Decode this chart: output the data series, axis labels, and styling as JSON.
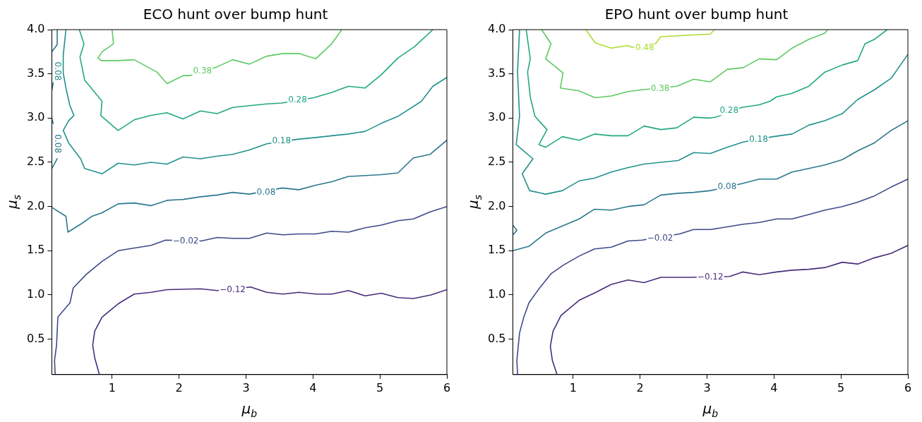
{
  "chart_data": [
    {
      "type": "line",
      "title": "ECO hunt over bump hunt",
      "xlabel": "μ$_{b}$",
      "ylabel": "μ$_{s}$",
      "xlim": [
        0.1,
        6
      ],
      "ylim": [
        0.1,
        4
      ],
      "xticks": [
        1,
        2,
        3,
        4,
        5,
        6
      ],
      "yticks": [
        {
          "value": 0.5,
          "label": "0.5"
        },
        {
          "value": 1,
          "label": "1.0"
        },
        {
          "value": 1.5,
          "label": "1.5"
        },
        {
          "value": 2,
          "label": "2.0"
        },
        {
          "value": 2.5,
          "label": "2.5"
        },
        {
          "value": 3,
          "label": "3.0"
        },
        {
          "value": 3.5,
          "label": "3.5"
        },
        {
          "value": 4,
          "label": "4.0"
        }
      ],
      "grid": false,
      "legend": false,
      "marker": "none",
      "line_style": "solid",
      "series": [
        {
          "color": "#472d7b",
          "x": [
            0.81,
            0.74,
            0.71,
            0.74,
            0.85,
            1.09,
            1.33,
            1.58,
            1.82,
            2.32,
            2.57,
            3.07,
            3.31,
            3.55,
            3.79,
            4.05,
            4.28,
            4.53,
            4.78,
            5.02,
            5.27,
            5.5,
            5.76,
            6.0
          ],
          "values": [
            0.1,
            0.29,
            0.43,
            0.59,
            0.75,
            0.9,
            1.01,
            1.03,
            1.06,
            1.07,
            1.05,
            1.09,
            1.03,
            1.01,
            1.03,
            1.01,
            1.01,
            1.05,
            0.99,
            1.02,
            0.97,
            0.96,
            1.0,
            1.06
          ]
        },
        {
          "color": "#3e4989",
          "x": [
            0.15,
            0.14,
            0.17,
            0.19,
            0.37,
            0.42,
            0.61,
            0.85,
            1.09,
            1.33,
            1.58,
            1.8,
            2.33,
            2.57,
            2.8,
            3.05,
            3.31,
            3.55,
            3.79,
            4.04,
            4.28,
            4.53,
            4.78,
            5.02,
            5.27,
            5.5,
            5.75,
            6.0
          ],
          "values": [
            0.1,
            0.26,
            0.43,
            0.75,
            0.91,
            1.08,
            1.23,
            1.38,
            1.5,
            1.53,
            1.56,
            1.62,
            1.61,
            1.65,
            1.64,
            1.64,
            1.7,
            1.68,
            1.69,
            1.69,
            1.72,
            1.71,
            1.76,
            1.79,
            1.84,
            1.86,
            1.94,
            2.0
          ]
        },
        {
          "color": "#2a788e",
          "x": [
            0.1,
            0.31,
            0.34,
            0.55,
            0.7,
            0.85,
            1.09,
            1.33,
            1.58,
            1.82,
            2.06,
            2.32,
            2.57,
            2.8,
            3.05,
            3.54,
            3.79,
            4.04,
            4.28,
            4.53,
            4.78,
            5.02,
            5.27,
            5.5,
            5.75,
            6.0
          ],
          "values": [
            1.99,
            1.89,
            1.71,
            1.81,
            1.89,
            1.93,
            2.03,
            2.04,
            2.01,
            2.07,
            2.08,
            2.11,
            2.13,
            2.16,
            2.14,
            2.21,
            2.19,
            2.24,
            2.28,
            2.34,
            2.35,
            2.36,
            2.38,
            2.55,
            2.59,
            2.75
          ]
        },
        {
          "color": "#2a788e",
          "x": [
            0.1,
            0.18
          ],
          "values": [
            2.43,
            2.54
          ]
        },
        {
          "color": "#2a788e",
          "x": [
            0.12,
            0.1
          ],
          "values": [
            2.94,
            3.0
          ]
        },
        {
          "color": "#2a788e",
          "x": [
            0.1,
            0.12
          ],
          "values": [
            3.31,
            3.4
          ]
        },
        {
          "color": "#2a788e",
          "x": [
            0.1,
            0.18,
            0.18
          ],
          "values": [
            3.75,
            3.83,
            4.0
          ]
        },
        {
          "color": "#21918c",
          "x": [
            0.31,
            0.27,
            0.27,
            0.31,
            0.37,
            0.43,
            0.35,
            0.27,
            0.35,
            0.41,
            0.53,
            0.59,
            0.85,
            1.09,
            1.33,
            1.58,
            1.82,
            2.06,
            2.32,
            2.57,
            2.8,
            3.05,
            3.31,
            3.77,
            4.04,
            4.28,
            4.53,
            4.78,
            5.02,
            5.27,
            5.62,
            5.79,
            6.0
          ],
          "values": [
            4.0,
            3.71,
            3.51,
            3.34,
            3.14,
            3.03,
            2.97,
            2.86,
            2.72,
            2.66,
            2.54,
            2.43,
            2.37,
            2.49,
            2.47,
            2.5,
            2.48,
            2.56,
            2.54,
            2.57,
            2.59,
            2.64,
            2.71,
            2.76,
            2.78,
            2.8,
            2.82,
            2.85,
            2.94,
            3.02,
            3.19,
            3.36,
            3.46
          ]
        },
        {
          "color": "#22a884",
          "x": [
            0.51,
            0.58,
            0.52,
            0.59,
            0.85,
            0.83,
            1.09,
            1.33,
            1.58,
            1.82,
            2.06,
            2.32,
            2.57,
            2.8,
            3.05,
            3.31,
            3.54,
            4.01,
            4.28,
            4.53,
            4.78,
            5.02,
            5.27,
            5.52,
            5.79
          ],
          "values": [
            4.0,
            3.84,
            3.69,
            3.43,
            3.19,
            3.03,
            2.86,
            2.98,
            3.03,
            3.06,
            2.99,
            3.08,
            3.05,
            3.12,
            3.14,
            3.16,
            3.17,
            3.23,
            3.29,
            3.36,
            3.34,
            3.49,
            3.68,
            3.81,
            4.0
          ]
        },
        {
          "color": "#5ec962",
          "x": [
            1.0,
            1.02,
            0.85,
            0.79,
            0.84,
            1.09,
            1.33,
            1.67,
            1.82,
            2.06,
            2.16,
            2.57,
            2.8,
            3.05,
            3.31,
            3.55,
            3.79,
            4.04,
            4.28,
            4.43
          ],
          "values": [
            4.0,
            3.84,
            3.75,
            3.68,
            3.65,
            3.65,
            3.66,
            3.52,
            3.39,
            3.48,
            3.48,
            3.58,
            3.66,
            3.61,
            3.7,
            3.73,
            3.73,
            3.67,
            3.84,
            4.0
          ]
        }
      ],
      "annotations": [
        {
          "text": "−0.12",
          "x": 2.8,
          "y": 1.06
        },
        {
          "text": "−0.02",
          "x": 2.1,
          "y": 1.61
        },
        {
          "text": "0.08",
          "x": 3.3,
          "y": 2.16
        },
        {
          "text": "0.18",
          "x": 3.53,
          "y": 2.74
        },
        {
          "text": "0.28",
          "x": 3.77,
          "y": 3.2
        },
        {
          "text": "0.38",
          "x": 2.35,
          "y": 3.53
        },
        {
          "text": "0.08",
          "x": 0.18,
          "y": 2.71
        },
        {
          "text": "0.08",
          "x": 0.18,
          "y": 3.53
        }
      ]
    },
    {
      "type": "line",
      "title": "EPO hunt over bump hunt",
      "xlabel": "μ$_{b}$",
      "ylabel": "μ$_{s}$",
      "xlim": [
        0.1,
        6
      ],
      "ylim": [
        0.1,
        4
      ],
      "xticks": [
        1,
        2,
        3,
        4,
        5,
        6
      ],
      "yticks": [
        {
          "value": 0.5,
          "label": "0.5"
        },
        {
          "value": 1,
          "label": "1.0"
        },
        {
          "value": 1.5,
          "label": "1.5"
        },
        {
          "value": 2,
          "label": "2.0"
        },
        {
          "value": 2.5,
          "label": "2.5"
        },
        {
          "value": 3,
          "label": "3.0"
        },
        {
          "value": 3.5,
          "label": "3.5"
        },
        {
          "value": 4,
          "label": "4.0"
        }
      ],
      "grid": false,
      "legend": false,
      "marker": "none",
      "line_style": "solid",
      "series": [
        {
          "color": "#472d7b",
          "x": [
            0.76,
            0.69,
            0.66,
            0.7,
            0.82,
            1.09,
            1.34,
            1.57,
            1.82,
            2.06,
            2.31,
            2.57,
            2.76,
            3.34,
            3.53,
            3.78,
            4.04,
            4.27,
            4.52,
            4.76,
            5.02,
            5.25,
            5.5,
            5.75,
            6.0
          ],
          "values": [
            0.1,
            0.26,
            0.42,
            0.59,
            0.77,
            0.94,
            1.03,
            1.12,
            1.17,
            1.14,
            1.2,
            1.2,
            1.2,
            1.21,
            1.26,
            1.23,
            1.26,
            1.28,
            1.29,
            1.31,
            1.37,
            1.35,
            1.42,
            1.47,
            1.56
          ]
        },
        {
          "color": "#3e4989",
          "x": [
            0.17,
            0.16,
            0.2,
            0.26,
            0.34,
            0.49,
            0.67,
            0.86,
            1.09,
            1.32,
            1.57,
            1.82,
            2.03,
            2.59,
            2.8,
            3.05,
            3.3,
            3.54,
            3.78,
            4.04,
            4.27,
            4.52,
            4.76,
            5.02,
            5.25,
            5.5,
            5.75,
            6.0
          ],
          "values": [
            0.1,
            0.26,
            0.57,
            0.74,
            0.91,
            1.07,
            1.24,
            1.34,
            1.44,
            1.52,
            1.54,
            1.61,
            1.62,
            1.69,
            1.74,
            1.74,
            1.77,
            1.8,
            1.82,
            1.86,
            1.86,
            1.91,
            1.96,
            2.0,
            2.05,
            2.12,
            2.22,
            2.31
          ]
        },
        {
          "color": "#2a788e",
          "x": [
            0.1,
            0.34,
            0.59,
            0.84,
            1.09,
            1.32,
            1.57,
            1.82,
            2.06,
            2.31,
            2.57,
            2.8,
            3.05,
            3.53,
            3.78,
            4.04,
            4.27,
            4.52,
            4.76,
            5.02,
            5.25,
            5.5,
            5.75,
            6.0
          ],
          "values": [
            1.5,
            1.55,
            1.7,
            1.78,
            1.86,
            1.97,
            1.96,
            2.0,
            2.02,
            2.13,
            2.15,
            2.16,
            2.18,
            2.26,
            2.31,
            2.31,
            2.39,
            2.43,
            2.47,
            2.53,
            2.63,
            2.72,
            2.86,
            2.97
          ]
        },
        {
          "color": "#2a788e",
          "x": [
            0.1,
            0.16,
            0.1
          ],
          "values": [
            1.79,
            1.73,
            1.68
          ]
        },
        {
          "color": "#21918c",
          "x": [
            0.2,
            0.17,
            0.2,
            0.15,
            0.4,
            0.24,
            0.35,
            0.59,
            0.84,
            1.09,
            1.32,
            1.57,
            1.82,
            2.06,
            2.31,
            2.57,
            2.8,
            3.05,
            3.3,
            3.54,
            3.99,
            4.27,
            4.52,
            4.76,
            5.02,
            5.25,
            5.5,
            5.75,
            6.0
          ],
          "values": [
            4.0,
            3.52,
            3.02,
            2.7,
            2.54,
            2.37,
            2.18,
            2.14,
            2.18,
            2.29,
            2.32,
            2.39,
            2.44,
            2.48,
            2.5,
            2.52,
            2.61,
            2.6,
            2.67,
            2.73,
            2.79,
            2.82,
            2.92,
            2.97,
            3.05,
            3.21,
            3.32,
            3.45,
            3.72
          ]
        },
        {
          "color": "#22a884",
          "x": [
            0.3,
            0.36,
            0.32,
            0.36,
            0.43,
            0.61,
            0.49,
            0.59,
            0.84,
            1.09,
            1.32,
            1.57,
            1.82,
            2.06,
            2.31,
            2.55,
            2.8,
            3.05,
            3.13,
            3.52,
            3.78,
            3.94,
            4.04,
            4.27,
            4.52,
            4.76,
            5.02,
            5.25,
            5.36,
            5.5,
            5.69
          ],
          "values": [
            4.0,
            3.67,
            3.52,
            3.24,
            3.02,
            2.87,
            2.7,
            2.67,
            2.79,
            2.75,
            2.82,
            2.8,
            2.8,
            2.91,
            2.87,
            2.89,
            3.01,
            3.0,
            3.01,
            3.12,
            3.15,
            3.19,
            3.24,
            3.28,
            3.36,
            3.52,
            3.6,
            3.65,
            3.84,
            3.89,
            4.0
          ]
        },
        {
          "color": "#5ec962",
          "x": [
            0.53,
            0.67,
            0.59,
            0.85,
            0.81,
            1.08,
            1.33,
            1.57,
            1.82,
            2.03,
            2.55,
            2.8,
            3.05,
            3.3,
            3.54,
            3.78,
            4.04,
            4.27,
            4.52,
            4.76,
            4.8
          ],
          "values": [
            4.0,
            3.84,
            3.67,
            3.51,
            3.34,
            3.31,
            3.23,
            3.25,
            3.3,
            3.32,
            3.36,
            3.44,
            3.41,
            3.55,
            3.57,
            3.67,
            3.66,
            3.79,
            3.89,
            3.96,
            4.0
          ]
        },
        {
          "color": "#addc30",
          "x": [
            1.19,
            1.33,
            1.57,
            1.82,
            1.88,
            2.23,
            2.31,
            2.8,
            3.05,
            3.11
          ],
          "values": [
            4.0,
            3.85,
            3.79,
            3.82,
            3.8,
            3.84,
            3.92,
            3.94,
            3.95,
            4.0
          ]
        }
      ],
      "annotations": [
        {
          "text": "−0.12",
          "x": 3.05,
          "y": 1.2
        },
        {
          "text": "−0.02",
          "x": 2.3,
          "y": 1.64
        },
        {
          "text": "0.08",
          "x": 3.3,
          "y": 2.22
        },
        {
          "text": "0.18",
          "x": 3.77,
          "y": 2.76
        },
        {
          "text": "0.28",
          "x": 3.33,
          "y": 3.08
        },
        {
          "text": "0.38",
          "x": 2.3,
          "y": 3.33
        },
        {
          "text": "0.48",
          "x": 2.07,
          "y": 3.79
        }
      ]
    }
  ]
}
